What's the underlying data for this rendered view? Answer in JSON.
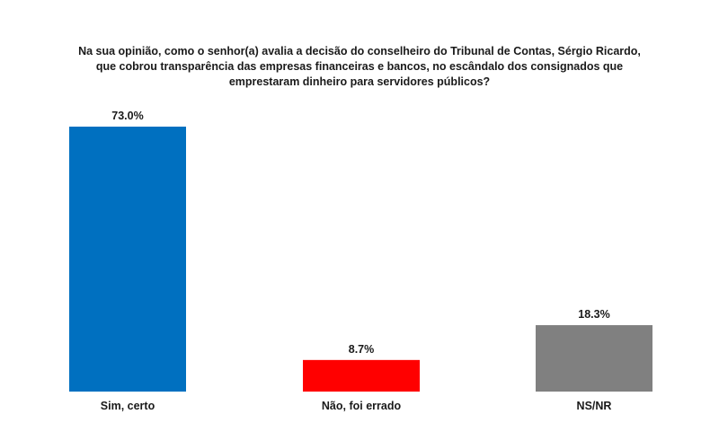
{
  "chart_data": {
    "type": "bar",
    "title_lines": [
      "Na sua opinião, como o senhor(a) avalia a decisão do conselheiro do Tribunal de Contas, Sérgio Ricardo,",
      "que cobrou transparência das empresas financeiras e bancos, no escândalo dos consignados que",
      "emprestaram dinheiro para servidores públicos?"
    ],
    "categories": [
      "Sim, certo",
      "Não, foi errado",
      "NS/NR"
    ],
    "values": [
      73.0,
      8.7,
      18.3
    ],
    "value_labels": [
      "73.0%",
      "8.7%",
      "18.3%"
    ],
    "colors": [
      "#0070C0",
      "#FF0000",
      "#808080"
    ],
    "xlabel": "",
    "ylabel": "",
    "ylim": [
      0,
      73
    ],
    "grid": false,
    "legend": "none"
  }
}
